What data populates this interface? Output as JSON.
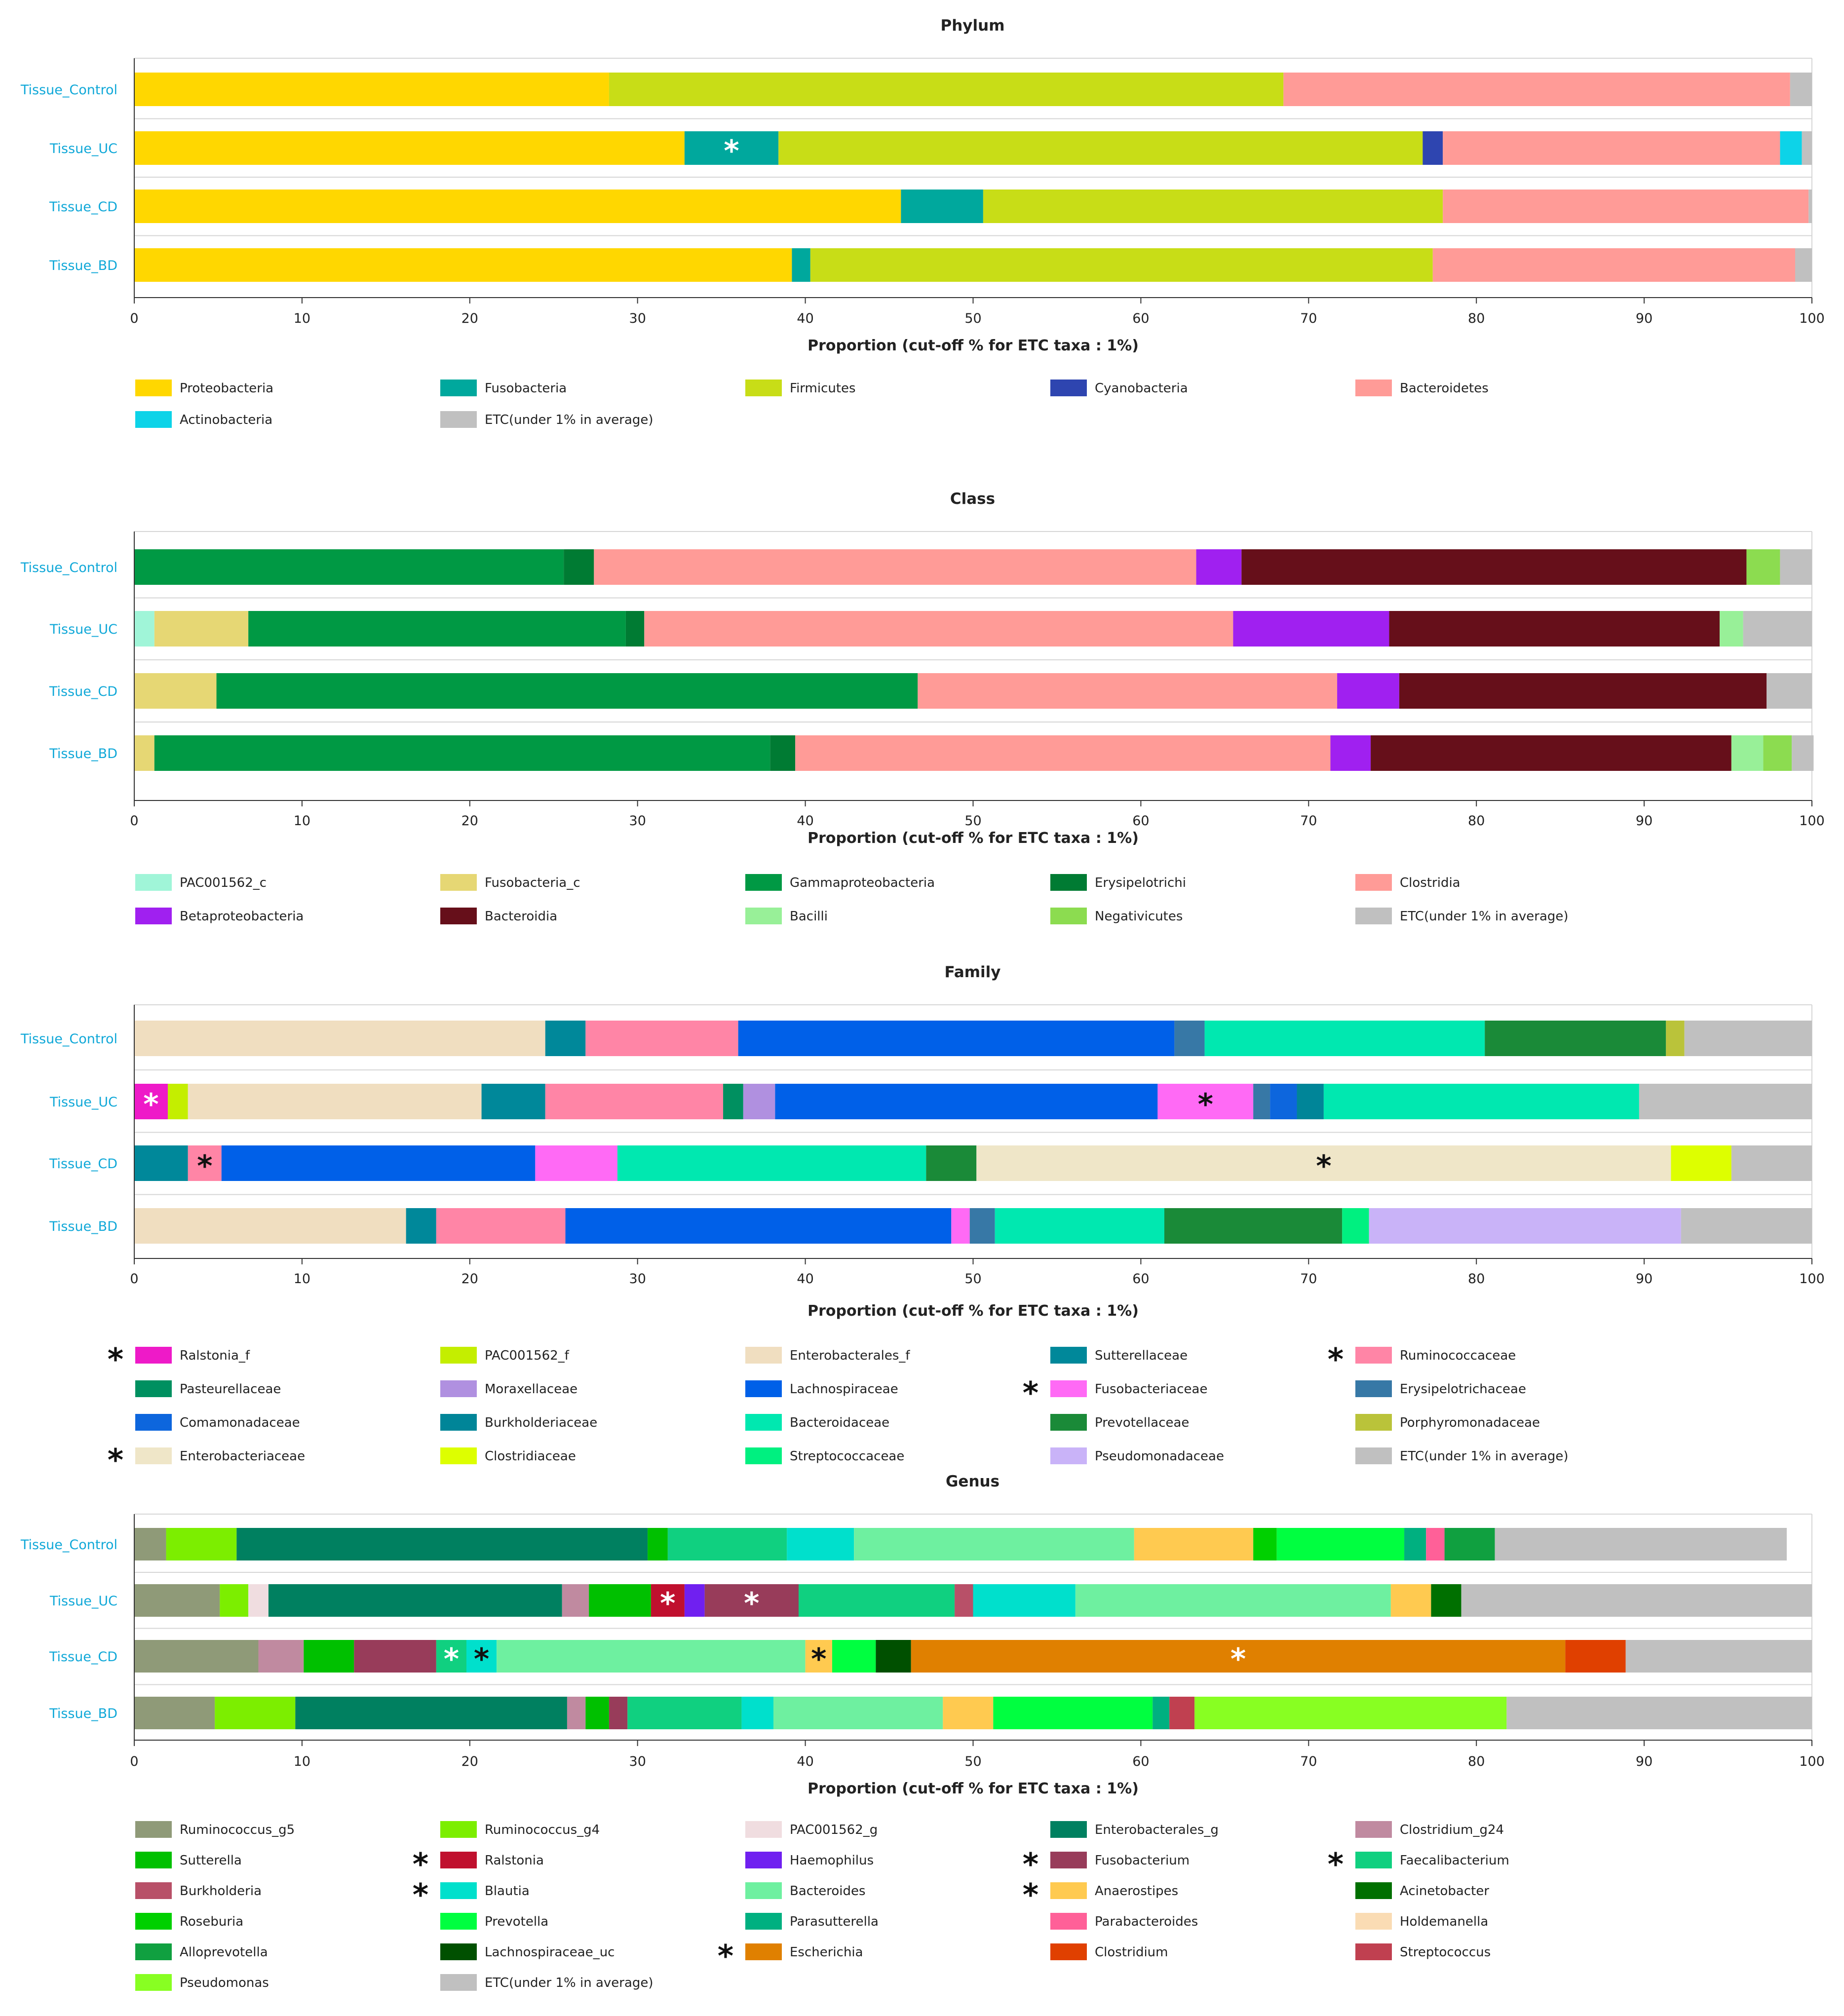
{
  "chart_data": [
    {
      "type": "bar",
      "orientation": "horizontal",
      "stacked": true,
      "title": "Phylum",
      "xlabel": "Proportion (cut-off % for ETC taxa : 1%)",
      "xlim": [
        0,
        100
      ],
      "xticks": [
        "0",
        "10",
        "20",
        "30",
        "40",
        "50",
        "60",
        "70",
        "80",
        "90",
        "100"
      ],
      "categories": [
        "Tissue_Control",
        "Tissue_UC",
        "Tissue_CD",
        "Tissue_BD"
      ],
      "series": [
        {
          "name": "Proteobacteria",
          "color": "#FFD700",
          "values": [
            28.3,
            32.8,
            45.7,
            39.2
          ]
        },
        {
          "name": "Fusobacteria",
          "color": "#00A89D",
          "values": [
            0,
            5.6,
            4.9,
            1.1
          ]
        },
        {
          "name": "Firmicutes",
          "color": "#C8DD17",
          "values": [
            40.2,
            38.4,
            27.4,
            37.1
          ]
        },
        {
          "name": "Cyanobacteria",
          "color": "#2E45B0",
          "values": [
            0,
            1.2,
            0,
            0
          ]
        },
        {
          "name": "Bacteroidetes",
          "color": "#FF9B97",
          "values": [
            30.2,
            20.1,
            21.8,
            21.6
          ]
        },
        {
          "name": "Actinobacteria",
          "color": "#0DD3E8",
          "values": [
            0,
            1.3,
            0,
            0
          ]
        },
        {
          "name": "ETC(under 1% in average)",
          "color": "#C0C0C0",
          "values": [
            1.3,
            0.6,
            0.2,
            1.0
          ]
        }
      ],
      "annotations": [
        {
          "category": "Tissue_UC",
          "series": "Fusobacteria",
          "text": "*"
        }
      ]
    },
    {
      "type": "bar",
      "orientation": "horizontal",
      "stacked": true,
      "title": "Class",
      "xlabel": "Proportion (cut-off % for ETC taxa : 1%)",
      "xlim": [
        0,
        100
      ],
      "xticks": [
        "0",
        "10",
        "20",
        "30",
        "40",
        "50",
        "60",
        "70",
        "80",
        "90",
        "100"
      ],
      "categories": [
        "Tissue_Control",
        "Tissue_UC",
        "Tissue_CD",
        "Tissue_BD"
      ],
      "series": [
        {
          "name": "PAC001562_c",
          "color": "#A0F5D8",
          "values": [
            0,
            1.2,
            0,
            0
          ]
        },
        {
          "name": "Fusobacteria_c",
          "color": "#E6D774",
          "values": [
            0,
            5.6,
            4.9,
            1.2
          ]
        },
        {
          "name": "Gammaproteobacteria",
          "color": "#009944",
          "values": [
            25.6,
            22.5,
            41.8,
            36.7
          ]
        },
        {
          "name": "Erysipelotrichi",
          "color": "#007B33",
          "values": [
            1.8,
            1.1,
            0,
            1.5
          ]
        },
        {
          "name": "Clostridia",
          "color": "#FF9B97",
          "values": [
            35.9,
            35.1,
            25.0,
            31.9
          ]
        },
        {
          "name": "Betaproteobacteria",
          "color": "#A020F0",
          "values": [
            2.7,
            9.3,
            3.7,
            2.4
          ]
        },
        {
          "name": "Bacteroidia",
          "color": "#660F1A",
          "values": [
            30.1,
            19.7,
            21.9,
            21.5
          ]
        },
        {
          "name": "Bacilli",
          "color": "#98F098",
          "values": [
            0,
            1.4,
            0,
            1.9
          ]
        },
        {
          "name": "Negativicutes",
          "color": "#8CDC50",
          "values": [
            2.0,
            0,
            0,
            1.7
          ]
        },
        {
          "name": "ETC(under 1% in average)",
          "color": "#C0C0C0",
          "values": [
            1.9,
            4.1,
            2.7,
            1.3
          ]
        }
      ]
    },
    {
      "type": "bar",
      "orientation": "horizontal",
      "stacked": true,
      "title": "Family",
      "xlabel": "Proportion (cut-off % for ETC taxa : 1%)",
      "xlim": [
        0,
        100
      ],
      "xticks": [
        "0",
        "10",
        "20",
        "30",
        "40",
        "50",
        "60",
        "70",
        "80",
        "90",
        "100"
      ],
      "categories": [
        "Tissue_Control",
        "Tissue_UC",
        "Tissue_CD",
        "Tissue_BD"
      ],
      "series": [
        {
          "name": "Ralstonia_f",
          "color": "#EE1AC8",
          "values": [
            0,
            2.0,
            0,
            0
          ]
        },
        {
          "name": "PAC001562_f",
          "color": "#C4EE00",
          "values": [
            0,
            1.2,
            0,
            0
          ]
        },
        {
          "name": "Enterobacterales_f",
          "color": "#F0DEC0",
          "values": [
            24.5,
            17.5,
            0,
            16.2
          ]
        },
        {
          "name": "Sutterellaceae",
          "color": "#00889A",
          "values": [
            2.4,
            3.8,
            3.2,
            1.8
          ]
        },
        {
          "name": "Ruminococcaceae",
          "color": "#FF85A6",
          "values": [
            9.1,
            10.6,
            2.0,
            7.7
          ]
        },
        {
          "name": "Pasteurellaceae",
          "color": "#009060",
          "values": [
            0,
            1.2,
            0,
            0
          ]
        },
        {
          "name": "Moraxellaceae",
          "color": "#B090E0",
          "values": [
            0,
            1.9,
            0,
            0
          ]
        },
        {
          "name": "Lachnospiraceae",
          "color": "#0060E8",
          "values": [
            26.0,
            22.8,
            18.7,
            23.0
          ]
        },
        {
          "name": "Fusobacteriaceae",
          "color": "#FF6AF5",
          "values": [
            0,
            5.7,
            4.9,
            1.1
          ]
        },
        {
          "name": "Erysipelotrichaceae",
          "color": "#3778A6",
          "values": [
            1.8,
            1.0,
            0,
            1.5
          ]
        },
        {
          "name": "Comamonadaceae",
          "color": "#0D66DD",
          "values": [
            0,
            1.6,
            0,
            0
          ]
        },
        {
          "name": "Burkholderiaceae",
          "color": "#008598",
          "values": [
            0,
            1.6,
            0,
            0
          ]
        },
        {
          "name": "Bacteroidaceae",
          "color": "#00E8B0",
          "values": [
            16.7,
            18.8,
            18.4,
            10.1
          ]
        },
        {
          "name": "Prevotellaceae",
          "color": "#1A8A38",
          "values": [
            10.8,
            0,
            3.0,
            10.6
          ]
        },
        {
          "name": "Porphyromonadaceae",
          "color": "#BAC33A",
          "values": [
            1.1,
            0,
            0,
            0
          ]
        },
        {
          "name": "Enterobacteriaceae",
          "color": "#EFE6C8",
          "values": [
            0,
            0,
            41.4,
            0
          ]
        },
        {
          "name": "Clostridiaceae",
          "color": "#DDFF00",
          "values": [
            0,
            0,
            3.6,
            0
          ]
        },
        {
          "name": "Streptococcaceae",
          "color": "#00F080",
          "values": [
            0,
            0,
            0,
            1.6
          ]
        },
        {
          "name": "Pseudomonadaceae",
          "color": "#C9B3F8",
          "values": [
            0,
            0,
            0,
            18.6
          ]
        },
        {
          "name": "ETC(under 1% in average)",
          "color": "#C0C0C0",
          "values": [
            7.6,
            10.3,
            4.8,
            7.8
          ]
        }
      ],
      "annotations": [
        {
          "category": "Tissue_UC",
          "series": "Ralstonia_f",
          "text": "*"
        },
        {
          "category": "Tissue_UC",
          "series": "Fusobacteriaceae",
          "text": "*"
        },
        {
          "category": "Tissue_CD",
          "series": "Ruminococcaceae",
          "text": "*"
        },
        {
          "category": "Tissue_CD",
          "series": "Enterobacteriaceae",
          "text": "*"
        }
      ],
      "legend_marked": [
        "Ralstonia_f",
        "Ruminococcaceae",
        "Fusobacteriaceae",
        "Enterobacteriaceae"
      ]
    },
    {
      "type": "bar",
      "orientation": "horizontal",
      "stacked": true,
      "title": "Genus",
      "xlabel": "Proportion (cut-off % for ETC taxa : 1%)",
      "xlim": [
        0,
        100
      ],
      "xticks": [
        "0",
        "10",
        "20",
        "30",
        "40",
        "50",
        "60",
        "70",
        "80",
        "90",
        "100"
      ],
      "categories": [
        "Tissue_Control",
        "Tissue_UC",
        "Tissue_CD",
        "Tissue_BD"
      ],
      "series": [
        {
          "name": "Ruminococcus_g5",
          "color": "#8F9A78",
          "values": [
            1.9,
            5.1,
            7.4,
            4.8
          ]
        },
        {
          "name": "Ruminococcus_g4",
          "color": "#7CEE00",
          "values": [
            4.2,
            1.7,
            0,
            4.8
          ]
        },
        {
          "name": "PAC001562_g",
          "color": "#F0DDE0",
          "values": [
            0,
            1.2,
            0,
            0
          ]
        },
        {
          "name": "Enterobacterales_g",
          "color": "#008060",
          "values": [
            24.5,
            17.5,
            0,
            16.2
          ]
        },
        {
          "name": "Clostridium_g24",
          "color": "#C08AA0",
          "values": [
            0,
            1.6,
            2.7,
            1.1
          ]
        },
        {
          "name": "Sutterella",
          "color": "#00C000",
          "values": [
            1.2,
            3.7,
            3.0,
            1.4
          ]
        },
        {
          "name": "Ralstonia",
          "color": "#C0102E",
          "values": [
            0,
            2.0,
            0,
            0
          ]
        },
        {
          "name": "Haemophilus",
          "color": "#7020F0",
          "values": [
            0,
            1.2,
            0,
            0
          ]
        },
        {
          "name": "Fusobacterium",
          "color": "#983C5A",
          "values": [
            0,
            5.6,
            4.9,
            1.1
          ]
        },
        {
          "name": "Faecalibacterium",
          "color": "#10D080",
          "values": [
            7.1,
            9.3,
            1.8,
            6.8
          ]
        },
        {
          "name": "Burkholderia",
          "color": "#B85068",
          "values": [
            0,
            1.1,
            0,
            0
          ]
        },
        {
          "name": "Blautia",
          "color": "#00E0CC",
          "values": [
            4.0,
            6.1,
            1.8,
            1.9
          ]
        },
        {
          "name": "Bacteroides",
          "color": "#6EF0A0",
          "values": [
            16.7,
            18.8,
            18.4,
            10.1
          ]
        },
        {
          "name": "Anaerostipes",
          "color": "#FFCA50",
          "values": [
            7.1,
            2.4,
            1.6,
            3.0
          ]
        },
        {
          "name": "Acinetobacter",
          "color": "#007000",
          "values": [
            0,
            1.8,
            0,
            0
          ]
        },
        {
          "name": "Roseburia",
          "color": "#00D000",
          "values": [
            1.4,
            0,
            0,
            0
          ]
        },
        {
          "name": "Prevotella",
          "color": "#00FF40",
          "values": [
            7.6,
            0,
            2.6,
            9.5
          ]
        },
        {
          "name": "Parasutterella",
          "color": "#00B080",
          "values": [
            1.3,
            0,
            0,
            1.0
          ]
        },
        {
          "name": "Parabacteroides",
          "color": "#FF6098",
          "values": [
            1.1,
            0,
            0,
            0
          ]
        },
        {
          "name": "Holdemanella",
          "color": "#FADCB4",
          "values": [
            0,
            0,
            0,
            0
          ]
        },
        {
          "name": "Alloprevotella",
          "color": "#10A040",
          "values": [
            3.0,
            0,
            0,
            0
          ]
        },
        {
          "name": "Lachnospiraceae_uc",
          "color": "#005000",
          "values": [
            0,
            0,
            2.1,
            0
          ]
        },
        {
          "name": "Escherichia",
          "color": "#E08000",
          "values": [
            0,
            0,
            39.0,
            0
          ]
        },
        {
          "name": "Clostridium",
          "color": "#E04000",
          "values": [
            0,
            0,
            3.6,
            0
          ]
        },
        {
          "name": "Streptococcus",
          "color": "#C04050",
          "values": [
            0,
            0,
            0,
            1.5
          ]
        },
        {
          "name": "Pseudomonas",
          "color": "#88FF22",
          "values": [
            0,
            0,
            0,
            18.6
          ]
        },
        {
          "name": "ETC(under 1% in average)",
          "color": "#C0C0C0",
          "values": [
            17.4,
            20.9,
            11.1,
            18.2
          ]
        }
      ],
      "annotations": [
        {
          "category": "Tissue_UC",
          "series": "Ralstonia",
          "text": "*"
        },
        {
          "category": "Tissue_UC",
          "series": "Fusobacterium",
          "text": "*"
        },
        {
          "category": "Tissue_CD",
          "series": "Faecalibacterium",
          "text": "*"
        },
        {
          "category": "Tissue_CD",
          "series": "Blautia",
          "text": "*"
        },
        {
          "category": "Tissue_CD",
          "series": "Anaerostipes",
          "text": "*"
        },
        {
          "category": "Tissue_CD",
          "series": "Escherichia",
          "text": "*"
        }
      ],
      "legend_marked": [
        "Ralstonia",
        "Blautia",
        "Fusobacterium",
        "Anaerostipes",
        "Faecalibacterium",
        "Escherichia"
      ]
    }
  ]
}
